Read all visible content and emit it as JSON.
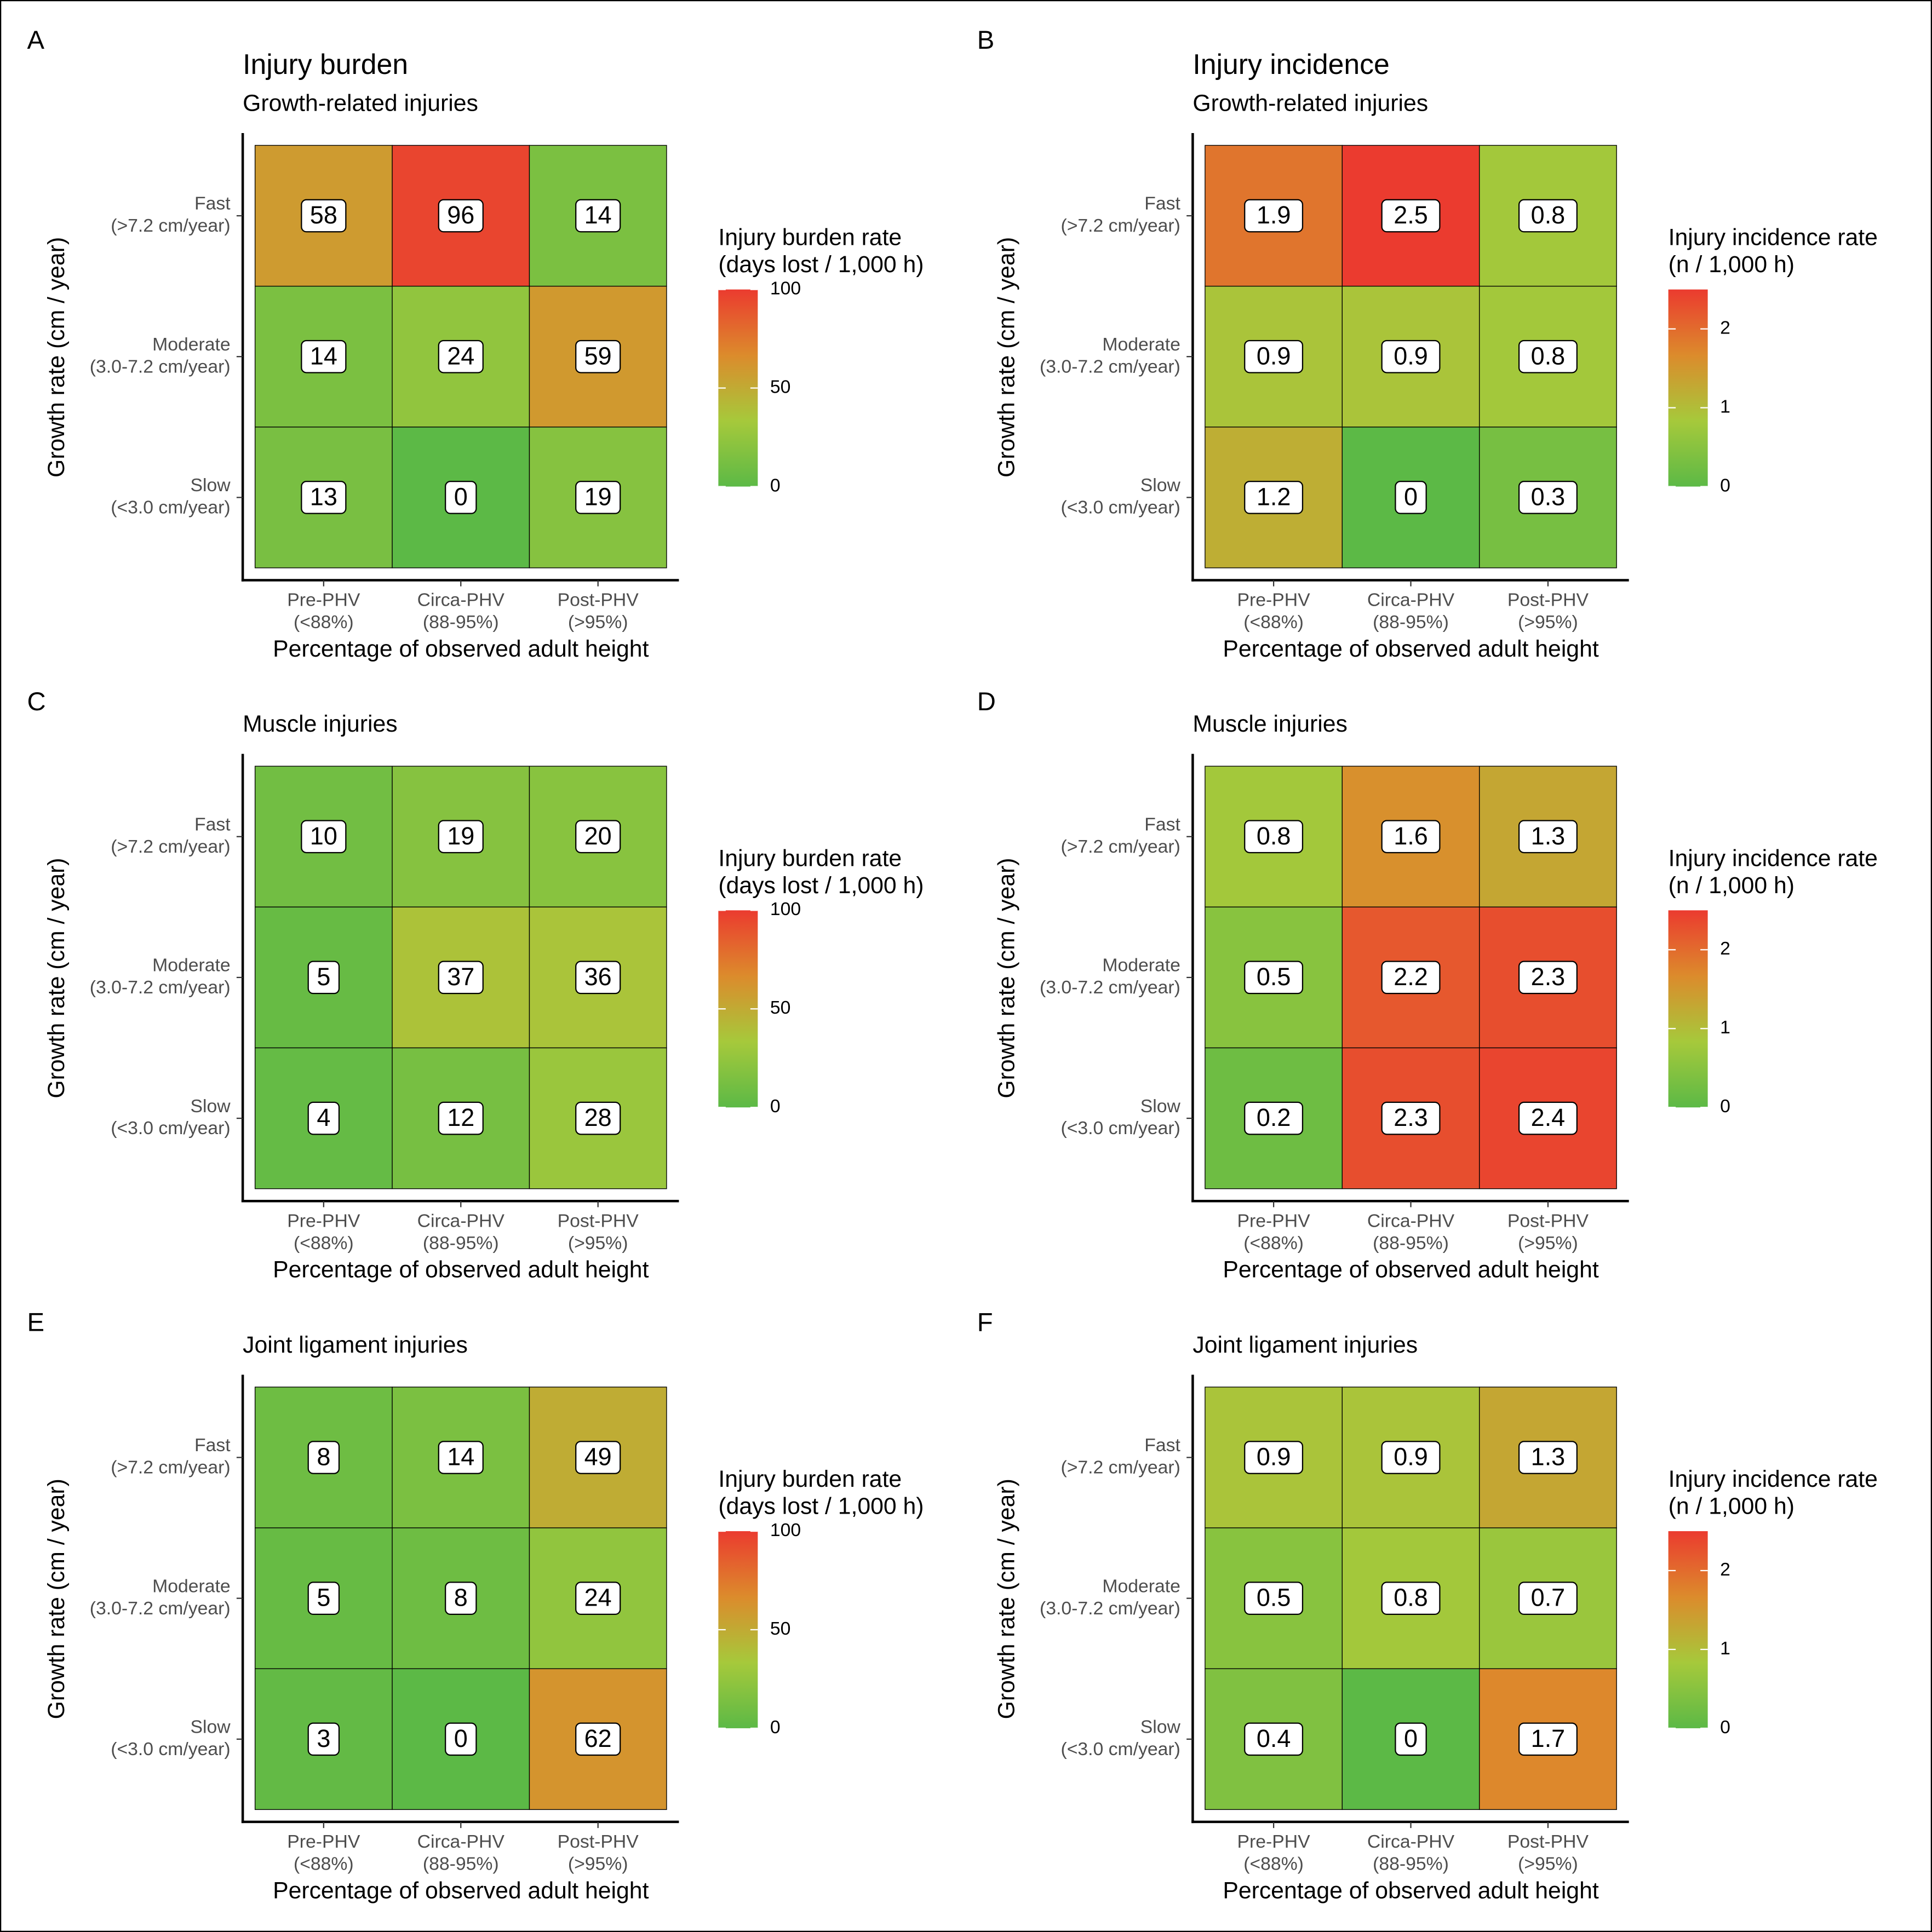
{
  "chart_data": [
    {
      "type": "heatmap",
      "panel": "A",
      "title": "Injury burden",
      "subtitle": "Growth-related injuries",
      "x_label": "Percentage of observed adult height",
      "y_label": "Growth rate (cm / year)",
      "x_categories": [
        [
          "Pre-PHV",
          "(<88%)"
        ],
        [
          "Circa-PHV",
          "(88-95%)"
        ],
        [
          "Post-PHV",
          "(>95%)"
        ]
      ],
      "y_categories": [
        [
          "Fast",
          "(>7.2 cm/year)"
        ],
        [
          "Moderate",
          "(3.0-7.2 cm/year)"
        ],
        [
          "Slow",
          "(<3.0 cm/year)"
        ]
      ],
      "values": [
        [
          58,
          96,
          14
        ],
        [
          14,
          24,
          59
        ],
        [
          13,
          0,
          19
        ]
      ],
      "legend_title": [
        "Injury burden rate",
        "(days lost / 1,000 h)"
      ],
      "clim": [
        0,
        100
      ],
      "cticks": [
        0,
        50,
        100
      ],
      "colorscale": [
        "#5cb946",
        "#a6c93b",
        "#dc8b2c",
        "#eb3b2f"
      ]
    },
    {
      "type": "heatmap",
      "panel": "B",
      "title": "Injury incidence",
      "subtitle": "Growth-related injuries",
      "x_label": "Percentage of observed adult height",
      "y_label": "Growth rate (cm / year)",
      "x_categories": [
        [
          "Pre-PHV",
          "(<88%)"
        ],
        [
          "Circa-PHV",
          "(88-95%)"
        ],
        [
          "Post-PHV",
          "(>95%)"
        ]
      ],
      "y_categories": [
        [
          "Fast",
          "(>7.2 cm/year)"
        ],
        [
          "Moderate",
          "(3.0-7.2 cm/year)"
        ],
        [
          "Slow",
          "(<3.0 cm/year)"
        ]
      ],
      "values": [
        [
          1.9,
          2.5,
          0.8
        ],
        [
          0.9,
          0.9,
          0.8
        ],
        [
          1.2,
          0,
          0.3
        ]
      ],
      "legend_title": [
        "Injury incidence rate",
        "(n / 1,000 h)"
      ],
      "clim": [
        0,
        2.5
      ],
      "cticks": [
        0,
        1,
        2
      ],
      "colorscale": [
        "#5cb946",
        "#a6c93b",
        "#dc8b2c",
        "#eb3b2f"
      ]
    },
    {
      "type": "heatmap",
      "panel": "C",
      "subtitle": "Muscle injuries",
      "x_label": "Percentage of observed adult height",
      "y_label": "Growth rate (cm / year)",
      "x_categories": [
        [
          "Pre-PHV",
          "(<88%)"
        ],
        [
          "Circa-PHV",
          "(88-95%)"
        ],
        [
          "Post-PHV",
          "(>95%)"
        ]
      ],
      "y_categories": [
        [
          "Fast",
          "(>7.2 cm/year)"
        ],
        [
          "Moderate",
          "(3.0-7.2 cm/year)"
        ],
        [
          "Slow",
          "(<3.0 cm/year)"
        ]
      ],
      "values": [
        [
          10,
          19,
          20
        ],
        [
          5,
          37,
          36
        ],
        [
          4,
          12,
          28
        ]
      ],
      "legend_title": [
        "Injury burden rate",
        "(days lost / 1,000 h)"
      ],
      "clim": [
        0,
        100
      ],
      "cticks": [
        0,
        50,
        100
      ],
      "colorscale": [
        "#5cb946",
        "#a6c93b",
        "#dc8b2c",
        "#eb3b2f"
      ]
    },
    {
      "type": "heatmap",
      "panel": "D",
      "subtitle": "Muscle injuries",
      "x_label": "Percentage of observed adult height",
      "y_label": "Growth rate (cm / year)",
      "x_categories": [
        [
          "Pre-PHV",
          "(<88%)"
        ],
        [
          "Circa-PHV",
          "(88-95%)"
        ],
        [
          "Post-PHV",
          "(>95%)"
        ]
      ],
      "y_categories": [
        [
          "Fast",
          "(>7.2 cm/year)"
        ],
        [
          "Moderate",
          "(3.0-7.2 cm/year)"
        ],
        [
          "Slow",
          "(<3.0 cm/year)"
        ]
      ],
      "values": [
        [
          0.8,
          1.6,
          1.3
        ],
        [
          0.5,
          2.2,
          2.3
        ],
        [
          0.2,
          2.3,
          2.4
        ]
      ],
      "legend_title": [
        "Injury incidence rate",
        "(n / 1,000 h)"
      ],
      "clim": [
        0,
        2.5
      ],
      "cticks": [
        0,
        1,
        2
      ],
      "colorscale": [
        "#5cb946",
        "#a6c93b",
        "#dc8b2c",
        "#eb3b2f"
      ]
    },
    {
      "type": "heatmap",
      "panel": "E",
      "subtitle": "Joint ligament injuries",
      "x_label": "Percentage of observed adult height",
      "y_label": "Growth rate (cm / year)",
      "x_categories": [
        [
          "Pre-PHV",
          "(<88%)"
        ],
        [
          "Circa-PHV",
          "(88-95%)"
        ],
        [
          "Post-PHV",
          "(>95%)"
        ]
      ],
      "y_categories": [
        [
          "Fast",
          "(>7.2 cm/year)"
        ],
        [
          "Moderate",
          "(3.0-7.2 cm/year)"
        ],
        [
          "Slow",
          "(<3.0 cm/year)"
        ]
      ],
      "values": [
        [
          8,
          14,
          49
        ],
        [
          5,
          8,
          24
        ],
        [
          3,
          0,
          62
        ]
      ],
      "legend_title": [
        "Injury burden rate",
        "(days lost / 1,000 h)"
      ],
      "clim": [
        0,
        100
      ],
      "cticks": [
        0,
        50,
        100
      ],
      "colorscale": [
        "#5cb946",
        "#a6c93b",
        "#dc8b2c",
        "#eb3b2f"
      ]
    },
    {
      "type": "heatmap",
      "panel": "F",
      "subtitle": "Joint ligament injuries",
      "x_label": "Percentage of observed adult height",
      "y_label": "Growth rate (cm / year)",
      "x_categories": [
        [
          "Pre-PHV",
          "(<88%)"
        ],
        [
          "Circa-PHV",
          "(88-95%)"
        ],
        [
          "Post-PHV",
          "(>95%)"
        ]
      ],
      "y_categories": [
        [
          "Fast",
          "(>7.2 cm/year)"
        ],
        [
          "Moderate",
          "(3.0-7.2 cm/year)"
        ],
        [
          "Slow",
          "(<3.0 cm/year)"
        ]
      ],
      "values": [
        [
          0.9,
          0.9,
          1.3
        ],
        [
          0.5,
          0.8,
          0.7
        ],
        [
          0.4,
          0,
          1.7
        ]
      ],
      "legend_title": [
        "Injury incidence rate",
        "(n / 1,000 h)"
      ],
      "clim": [
        0,
        2.5
      ],
      "cticks": [
        0,
        1,
        2
      ],
      "colorscale": [
        "#5cb946",
        "#a6c93b",
        "#dc8b2c",
        "#eb3b2f"
      ]
    }
  ]
}
